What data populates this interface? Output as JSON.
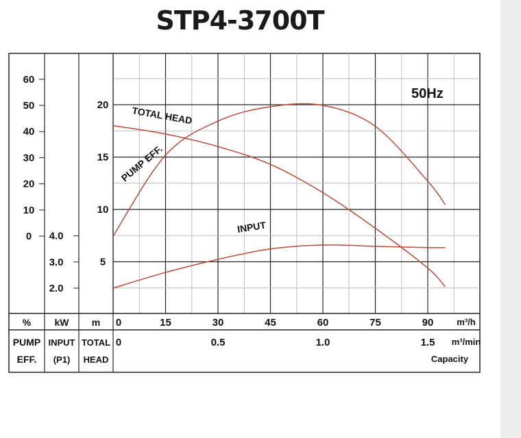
{
  "title": "STP4-3700T",
  "frequency": "50Hz",
  "chart_data": {
    "type": "line",
    "title": "STP4-3700T",
    "annotation": "50Hz",
    "x": {
      "capacity_m3h": {
        "unit": "m³/h",
        "ticks": [
          "0",
          "15",
          "30",
          "45",
          "60",
          "75",
          "90"
        ],
        "range": [
          0,
          100
        ]
      },
      "capacity_m3min": {
        "unit": "m³/min",
        "ticks": [
          {
            "v": 0,
            "label": "0"
          },
          {
            "v": 0.5,
            "label": "0.5"
          },
          {
            "v": 1.0,
            "label": "1.0"
          },
          {
            "v": 1.5,
            "label": "1.5"
          }
        ]
      },
      "caption": "Capacity"
    },
    "axes": {
      "head": {
        "unit": "m",
        "ticks": [
          "5",
          "10",
          "15",
          "20"
        ],
        "caption_lines": [
          "TOTAL",
          "HEAD"
        ],
        "range": [
          0,
          25
        ]
      },
      "input": {
        "unit": "kW",
        "ticks": [
          "2.0",
          "3.0",
          "4.0"
        ],
        "caption_lines": [
          "INPUT",
          "(P1)"
        ],
        "range": [
          0,
          6
        ]
      },
      "eff": {
        "unit": "%",
        "ticks": [
          "0",
          "10",
          "20",
          "30",
          "40",
          "50",
          "60"
        ],
        "caption_lines": [
          "PUMP",
          "EFF."
        ],
        "range": [
          -30,
          70
        ]
      }
    },
    "grid": true,
    "series": [
      {
        "name": "TOTAL HEAD",
        "axis": "head",
        "color": "#b84a36",
        "x": [
          0,
          15,
          30,
          45,
          60,
          75,
          90,
          95
        ],
        "y": [
          18.0,
          17.2,
          16.0,
          14.3,
          11.6,
          8.2,
          4.4,
          2.6
        ]
      },
      {
        "name": "PUMP EFF.",
        "axis": "eff",
        "color": "#b84a36",
        "x": [
          0,
          15,
          30,
          45,
          60,
          75,
          90,
          95
        ],
        "y": [
          0,
          31,
          44,
          49.5,
          50,
          42,
          21,
          12
        ]
      },
      {
        "name": "INPUT",
        "axis": "input",
        "color": "#b84a36",
        "x": [
          0,
          15,
          30,
          45,
          60,
          75,
          90,
          95
        ],
        "y": [
          2.0,
          2.6,
          3.1,
          3.5,
          3.65,
          3.6,
          3.55,
          3.55
        ]
      }
    ]
  }
}
